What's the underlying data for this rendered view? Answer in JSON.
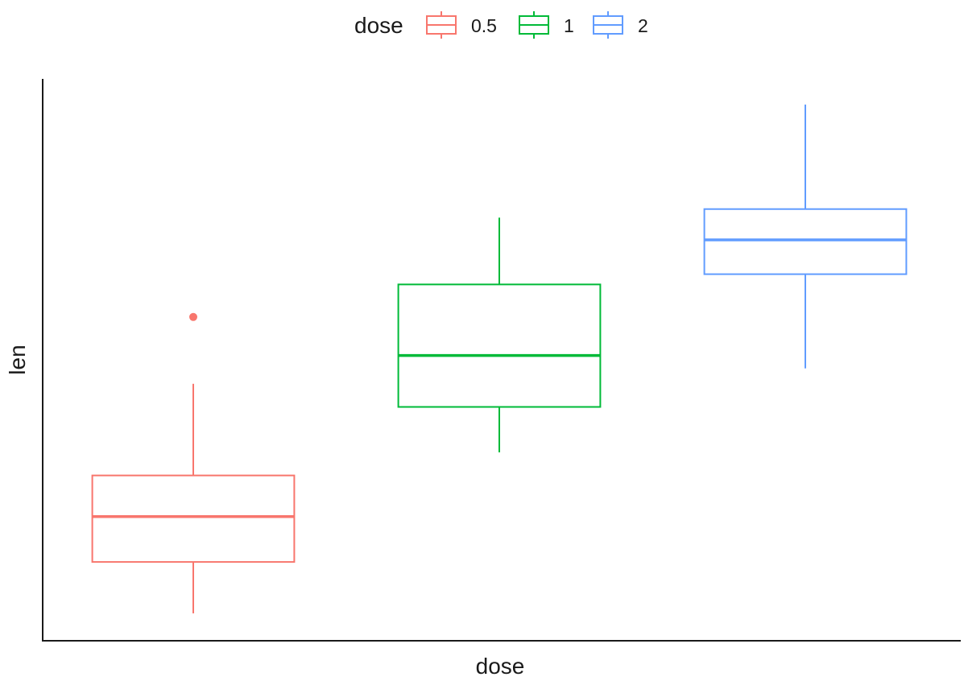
{
  "chart_data": {
    "type": "boxplot",
    "xlabel": "dose",
    "ylabel": "len",
    "categories": [
      "0.5",
      "1",
      "2"
    ],
    "colors": [
      "#F8766D",
      "#00BA38",
      "#619CFF"
    ],
    "legend": {
      "title": "dose",
      "position": "top",
      "entries": [
        "0.5",
        "1",
        "2"
      ]
    },
    "boxes": [
      {
        "category": "0.5",
        "whisker_low": 4.2,
        "q1": 7.2,
        "median": 9.85,
        "q3": 12.25,
        "whisker_high": 17.6,
        "outliers": [
          21.5
        ]
      },
      {
        "category": "1",
        "whisker_low": 13.6,
        "q1": 16.25,
        "median": 19.25,
        "q3": 23.4,
        "whisker_high": 27.3,
        "outliers": []
      },
      {
        "category": "2",
        "whisker_low": 18.5,
        "q1": 24.0,
        "median": 26.0,
        "q3": 27.8,
        "whisker_high": 33.9,
        "outliers": []
      }
    ],
    "ylim": [
      2.6,
      35.4
    ],
    "y_ticks_shown": false,
    "x_ticks_shown": false,
    "grid": false
  }
}
